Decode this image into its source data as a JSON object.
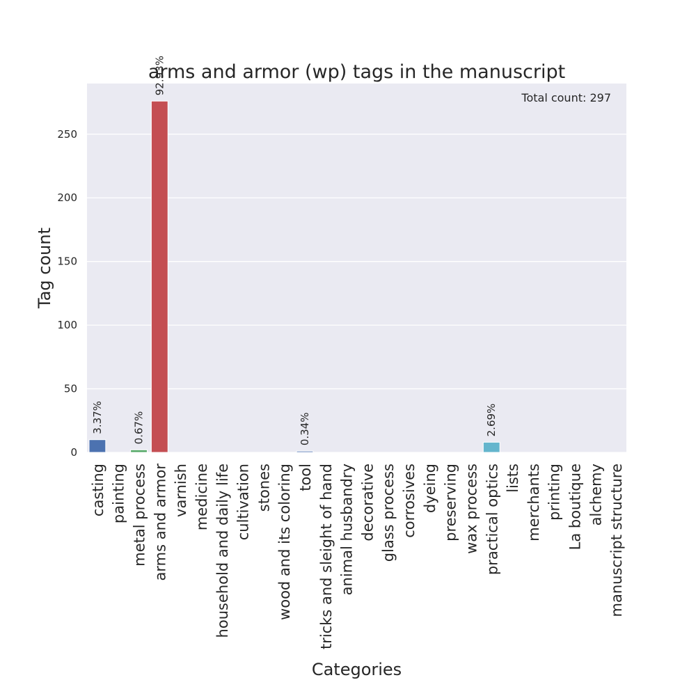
{
  "chart_data": {
    "type": "bar",
    "title": "arms and armor (wp) tags in the manuscript",
    "xlabel": "Categories",
    "ylabel": "Tag count",
    "categories": [
      "casting",
      "painting",
      "metal process",
      "arms and armor",
      "varnish",
      "medicine",
      "household and daily life",
      "cultivation",
      "stones",
      "wood and its coloring",
      "tool",
      "tricks and sleight of hand",
      "animal husbandry",
      "decorative",
      "glass process",
      "corrosives",
      "dyeing",
      "preserving",
      "wax process",
      "practical optics",
      "lists",
      "merchants",
      "printing",
      "La boutique",
      "alchemy",
      "manuscript structure"
    ],
    "values": [
      10,
      0,
      2,
      276,
      0,
      0,
      0,
      0,
      0,
      0,
      1,
      0,
      0,
      0,
      0,
      0,
      0,
      0,
      0,
      8,
      0,
      0,
      0,
      0,
      0,
      0
    ],
    "data_labels": [
      "3.37%",
      "",
      "0.67%",
      "92.93%",
      "",
      "",
      "",
      "",
      "",
      "",
      "0.34%",
      "",
      "",
      "",
      "",
      "",
      "",
      "",
      "",
      "2.69%",
      "",
      "",
      "",
      "",
      "",
      ""
    ],
    "colors": [
      "#4c72b0",
      "#dd8452",
      "#55a868",
      "#c44e52",
      "#8172b3",
      "#937860",
      "#da8bc3",
      "#8c8c8c",
      "#ccb974",
      "#64b5cd",
      "#4c72b0",
      "#dd8452",
      "#55a868",
      "#c44e52",
      "#8172b3",
      "#937860",
      "#da8bc3",
      "#8c8c8c",
      "#ccb974",
      "#64b5cd",
      "#4c72b0",
      "#dd8452",
      "#55a868",
      "#c44e52",
      "#8172b3",
      "#937860"
    ],
    "yticks": [
      0,
      50,
      100,
      150,
      200,
      250
    ],
    "ylim": [
      0,
      289.8
    ],
    "grid": true,
    "background": "#eaeaf2",
    "annotation": "Total count: 297"
  }
}
